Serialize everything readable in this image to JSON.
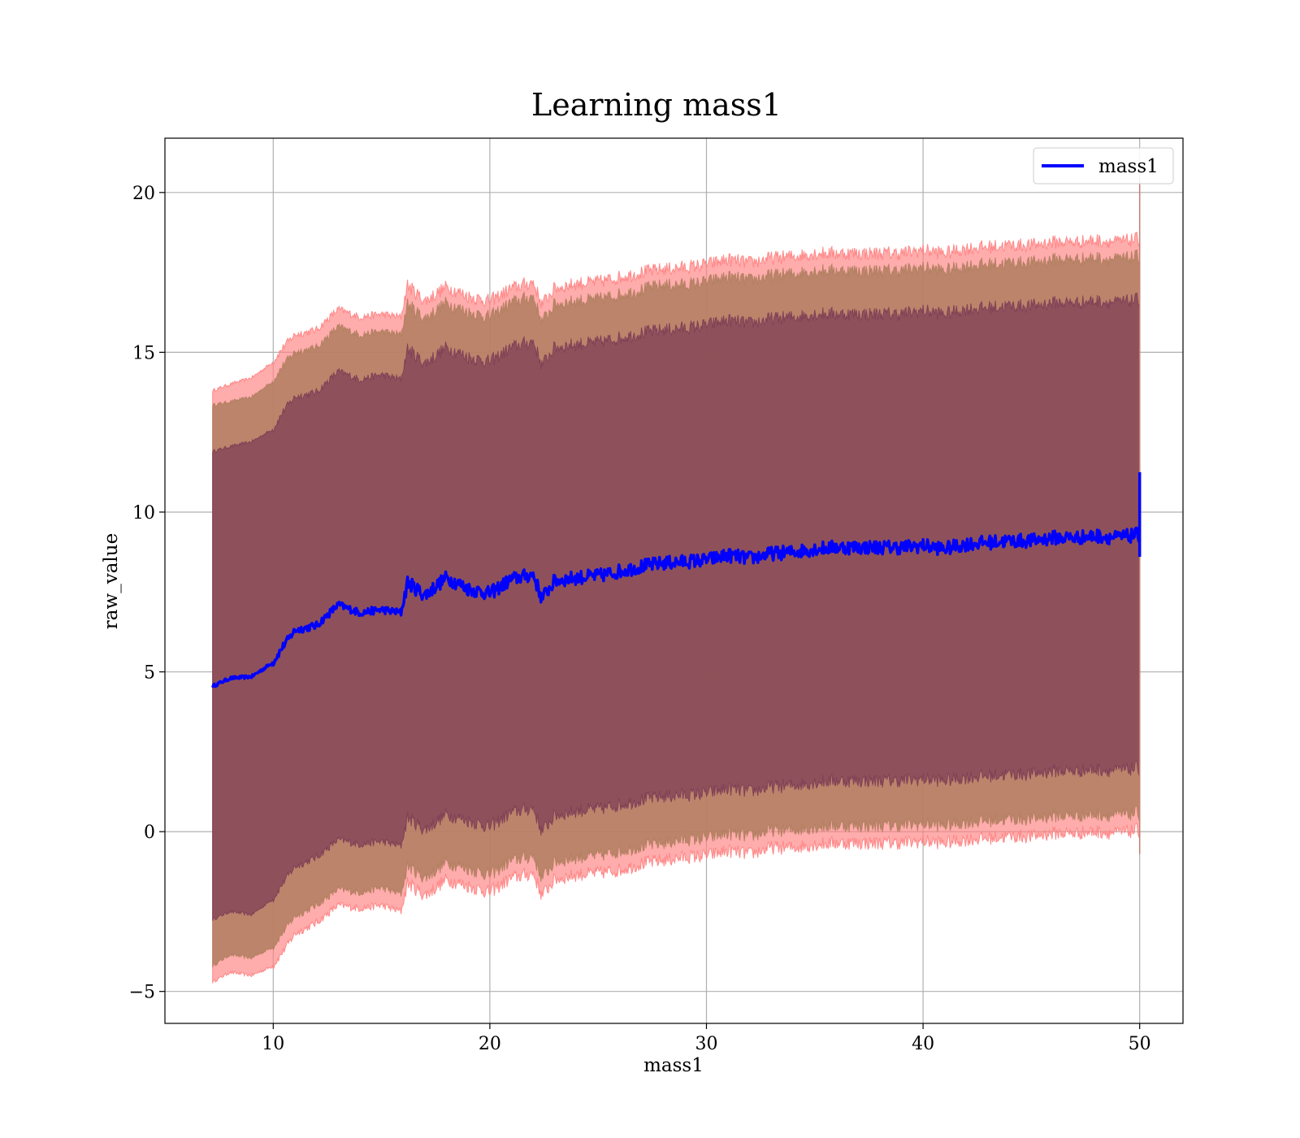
{
  "chart_data": {
    "type": "area",
    "title": "Learning mass1",
    "xlabel": "mass1",
    "ylabel": "raw_value",
    "xlim": [
      5,
      52
    ],
    "ylim": [
      -6,
      21.7
    ],
    "xticks": [
      10,
      20,
      30,
      40,
      50
    ],
    "yticks": [
      -5,
      0,
      5,
      10,
      15,
      20
    ],
    "xtick_labels": [
      "10",
      "20",
      "30",
      "40",
      "50"
    ],
    "ytick_labels": [
      "−5",
      "0",
      "5",
      "10",
      "15",
      "20"
    ],
    "grid": true,
    "legend_position": "top-right",
    "x": [
      7.2,
      8,
      9,
      10,
      10.5,
      11,
      12,
      13,
      14,
      15,
      15.9,
      16.2,
      17,
      18,
      19,
      20,
      21,
      22,
      22.4,
      23,
      24,
      25,
      26,
      27,
      28,
      29,
      30,
      31,
      32,
      33,
      34,
      35,
      36,
      37,
      38,
      39,
      40,
      41,
      42,
      43,
      44,
      45,
      46,
      47,
      48,
      49,
      50
    ],
    "series": [
      {
        "name": "mass1",
        "color": "#0000ff",
        "values": [
          4.55,
          4.8,
          4.85,
          5.3,
          5.85,
          6.3,
          6.45,
          7.1,
          6.85,
          6.95,
          6.85,
          7.8,
          7.4,
          7.95,
          7.6,
          7.45,
          7.9,
          8.05,
          7.3,
          7.85,
          7.95,
          8.0,
          8.15,
          8.3,
          8.4,
          8.45,
          8.5,
          8.65,
          8.55,
          8.7,
          8.75,
          8.85,
          8.9,
          8.9,
          8.9,
          8.9,
          8.95,
          8.85,
          9.0,
          9.05,
          9.1,
          9.1,
          9.2,
          9.2,
          9.25,
          9.2,
          9.3
        ],
        "end_spike": [
          8.6,
          11.25
        ]
      }
    ],
    "bands": [
      {
        "name": "outer",
        "color": "#ff8080",
        "opacity": 0.65,
        "upper": [
          13.8,
          14.0,
          14.2,
          14.7,
          15.2,
          15.55,
          15.7,
          16.35,
          16.1,
          16.2,
          16.1,
          17.1,
          16.6,
          17.05,
          16.75,
          16.6,
          17.0,
          17.2,
          16.5,
          17.0,
          17.15,
          17.2,
          17.35,
          17.5,
          17.6,
          17.65,
          17.75,
          17.9,
          17.8,
          17.95,
          18.0,
          18.1,
          18.1,
          18.1,
          18.1,
          18.1,
          18.2,
          18.1,
          18.25,
          18.3,
          18.35,
          18.35,
          18.45,
          18.45,
          18.5,
          18.45,
          18.55
        ],
        "lower": [
          -4.7,
          -4.4,
          -4.5,
          -4.2,
          -3.7,
          -3.2,
          -2.85,
          -2.3,
          -2.4,
          -2.3,
          -2.5,
          -1.6,
          -2.0,
          -1.5,
          -1.7,
          -1.9,
          -1.45,
          -1.3,
          -2.0,
          -1.5,
          -1.35,
          -1.3,
          -1.2,
          -1.0,
          -0.9,
          -0.8,
          -0.75,
          -0.6,
          -0.7,
          -0.5,
          -0.5,
          -0.4,
          -0.35,
          -0.35,
          -0.35,
          -0.35,
          -0.3,
          -0.35,
          -0.25,
          -0.2,
          -0.15,
          -0.15,
          -0.05,
          -0.05,
          0.0,
          -0.05,
          0.05
        ]
      },
      {
        "name": "middle",
        "color": "#b07e5f",
        "opacity": 0.85,
        "upper": [
          13.35,
          13.45,
          13.6,
          14.1,
          14.65,
          15.0,
          15.15,
          15.8,
          15.55,
          15.65,
          15.55,
          16.5,
          16.05,
          16.55,
          16.25,
          16.1,
          16.55,
          16.75,
          15.95,
          16.5,
          16.6,
          16.65,
          16.8,
          16.95,
          17.1,
          17.1,
          17.2,
          17.35,
          17.25,
          17.4,
          17.45,
          17.55,
          17.55,
          17.55,
          17.55,
          17.55,
          17.65,
          17.55,
          17.7,
          17.75,
          17.8,
          17.8,
          17.9,
          17.9,
          17.95,
          17.9,
          18.0
        ],
        "lower": [
          -4.2,
          -3.85,
          -3.95,
          -3.6,
          -3.1,
          -2.65,
          -2.3,
          -1.8,
          -1.9,
          -1.75,
          -1.95,
          -1.05,
          -1.45,
          -0.95,
          -1.15,
          -1.35,
          -0.9,
          -0.75,
          -1.45,
          -0.95,
          -0.8,
          -0.75,
          -0.6,
          -0.45,
          -0.35,
          -0.25,
          -0.2,
          -0.05,
          -0.15,
          0.05,
          0.05,
          0.15,
          0.2,
          0.2,
          0.2,
          0.2,
          0.25,
          0.2,
          0.3,
          0.35,
          0.4,
          0.4,
          0.5,
          0.5,
          0.55,
          0.5,
          0.6
        ]
      },
      {
        "name": "inner",
        "color": "#7d3d55",
        "opacity": 0.72,
        "upper": [
          11.9,
          12.05,
          12.2,
          12.6,
          13.2,
          13.6,
          13.75,
          14.4,
          14.15,
          14.3,
          14.15,
          15.1,
          14.65,
          15.15,
          14.85,
          14.7,
          15.15,
          15.35,
          14.6,
          15.15,
          15.25,
          15.3,
          15.45,
          15.6,
          15.7,
          15.75,
          15.85,
          16.0,
          15.9,
          16.05,
          16.1,
          16.2,
          16.2,
          16.2,
          16.2,
          16.2,
          16.3,
          16.2,
          16.35,
          16.4,
          16.45,
          16.45,
          16.55,
          16.55,
          16.6,
          16.55,
          16.65
        ],
        "lower": [
          -2.75,
          -2.5,
          -2.6,
          -2.1,
          -1.55,
          -1.1,
          -0.8,
          -0.25,
          -0.4,
          -0.3,
          -0.45,
          0.45,
          0.05,
          0.55,
          0.35,
          0.15,
          0.6,
          0.75,
          0.0,
          0.5,
          0.65,
          0.7,
          0.85,
          1.0,
          1.1,
          1.15,
          1.2,
          1.35,
          1.25,
          1.4,
          1.45,
          1.55,
          1.6,
          1.6,
          1.6,
          1.6,
          1.65,
          1.6,
          1.7,
          1.75,
          1.8,
          1.8,
          1.9,
          1.9,
          1.95,
          1.9,
          2.0
        ]
      }
    ]
  }
}
